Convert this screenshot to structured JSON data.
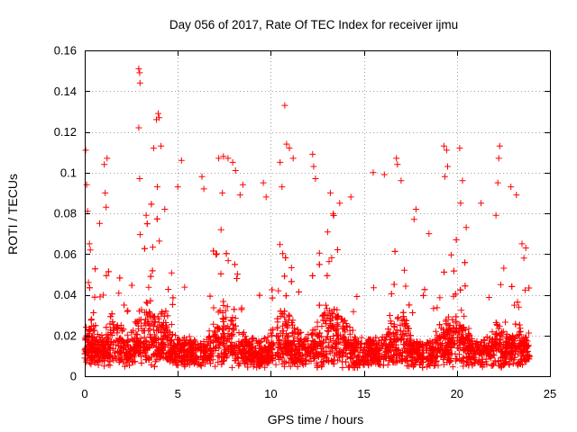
{
  "chart_data": {
    "type": "scatter",
    "title": "Day 056 of 2017, Rate Of TEC Index for receiver ijmu",
    "xlabel": "GPS time / hours",
    "ylabel": "ROTI / TECUs",
    "xlim": [
      0,
      25
    ],
    "ylim": [
      0,
      0.16
    ],
    "xticks": [
      0,
      5,
      10,
      15,
      20,
      25
    ],
    "xtick_labels": [
      "0",
      "5",
      "10",
      "15",
      "20",
      "25"
    ],
    "yticks": [
      0,
      0.02,
      0.04,
      0.06,
      0.08,
      0.1,
      0.12,
      0.14,
      0.16
    ],
    "ytick_labels": [
      "0",
      "0.02",
      "0.04",
      "0.06",
      "0.08",
      "0.1",
      "0.12",
      "0.14",
      "0.16"
    ],
    "grid": true,
    "marker": "+",
    "color": "#ff0000",
    "series": [
      {
        "name": "ROTI",
        "points": [
          [
            0.05,
            0.111
          ],
          [
            0.1,
            0.094
          ],
          [
            0.15,
            0.081
          ],
          [
            0.25,
            0.065
          ],
          [
            0.3,
            0.062
          ],
          [
            0.2,
            0.046
          ],
          [
            1.05,
            0.104
          ],
          [
            1.2,
            0.107
          ],
          [
            1.1,
            0.09
          ],
          [
            1.15,
            0.083
          ],
          [
            0.8,
            0.075
          ],
          [
            2.9,
            0.151
          ],
          [
            2.95,
            0.149
          ],
          [
            2.97,
            0.144
          ],
          [
            2.9,
            0.122
          ],
          [
            2.95,
            0.097
          ],
          [
            3.3,
            0.079
          ],
          [
            3.7,
            0.112
          ],
          [
            3.95,
            0.129
          ],
          [
            4.0,
            0.127
          ],
          [
            3.85,
            0.126
          ],
          [
            4.1,
            0.113
          ],
          [
            3.9,
            0.093
          ],
          [
            4.3,
            0.082
          ],
          [
            5.2,
            0.106
          ],
          [
            5.0,
            0.093
          ],
          [
            6.3,
            0.098
          ],
          [
            6.4,
            0.092
          ],
          [
            7.2,
            0.107
          ],
          [
            7.45,
            0.108
          ],
          [
            7.7,
            0.107
          ],
          [
            7.95,
            0.105
          ],
          [
            8.1,
            0.101
          ],
          [
            7.4,
            0.09
          ],
          [
            8.35,
            0.089
          ],
          [
            8.5,
            0.094
          ],
          [
            9.6,
            0.095
          ],
          [
            9.75,
            0.088
          ],
          [
            10.5,
            0.105
          ],
          [
            10.75,
            0.133
          ],
          [
            10.85,
            0.114
          ],
          [
            11.0,
            0.112
          ],
          [
            11.2,
            0.107
          ],
          [
            10.6,
            0.093
          ],
          [
            12.25,
            0.109
          ],
          [
            12.3,
            0.103
          ],
          [
            12.4,
            0.097
          ],
          [
            13.2,
            0.09
          ],
          [
            13.7,
            0.085
          ],
          [
            14.3,
            0.088
          ],
          [
            15.5,
            0.1
          ],
          [
            16.1,
            0.099
          ],
          [
            16.75,
            0.107
          ],
          [
            16.8,
            0.104
          ],
          [
            17.0,
            0.096
          ],
          [
            17.8,
            0.082
          ],
          [
            17.7,
            0.077
          ],
          [
            18.5,
            0.07
          ],
          [
            19.3,
            0.113
          ],
          [
            19.45,
            0.111
          ],
          [
            19.5,
            0.103
          ],
          [
            19.35,
            0.098
          ],
          [
            20.15,
            0.112
          ],
          [
            20.3,
            0.096
          ],
          [
            20.2,
            0.085
          ],
          [
            20.5,
            0.073
          ],
          [
            21.3,
            0.085
          ],
          [
            22.1,
            0.079
          ],
          [
            22.3,
            0.113
          ],
          [
            22.25,
            0.107
          ],
          [
            22.2,
            0.095
          ],
          [
            22.9,
            0.093
          ],
          [
            23.2,
            0.089
          ],
          [
            23.5,
            0.065
          ],
          [
            23.7,
            0.063
          ],
          [
            23.6,
            0.058
          ]
        ]
      }
    ]
  }
}
